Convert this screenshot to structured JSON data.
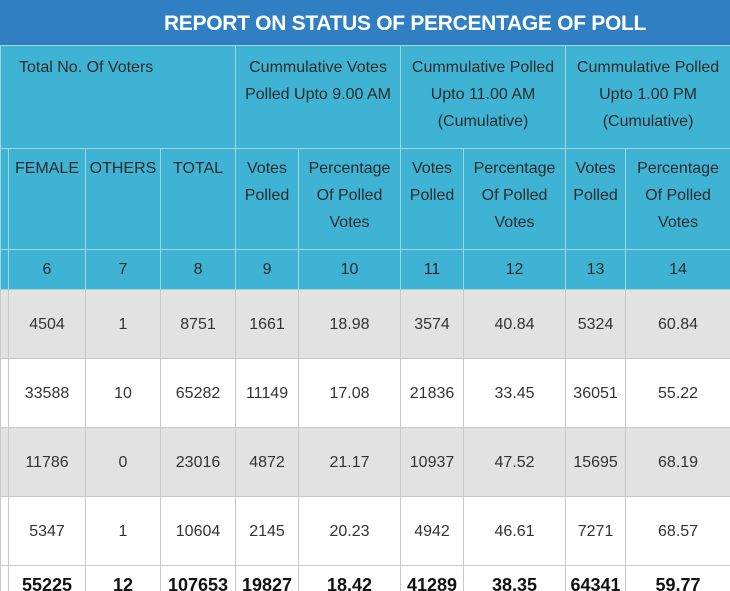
{
  "title": "REPORT ON STATUS OF PERCENTAGE OF POLL",
  "group_headers": [
    "Total No. Of Voters",
    "Cummulative Votes Polled Upto 9.00 AM",
    "Cummulative Polled Upto 11.00 AM (Cumulative)",
    "Cummulative Polled Upto 1.00 PM (Cumulative)"
  ],
  "sub_headers": [
    "FEMALE",
    "OTHERS",
    "TOTAL",
    "Votes Polled",
    "Percentage Of Polled Votes",
    "Votes Polled",
    "Percentage Of Polled Votes",
    "Votes Polled",
    "Percentage Of Polled Votes"
  ],
  "column_numbers": [
    "6",
    "7",
    "8",
    "9",
    "10",
    "11",
    "12",
    "13",
    "14"
  ],
  "rows": [
    [
      "4504",
      "1",
      "8751",
      "1661",
      "18.98",
      "3574",
      "40.84",
      "5324",
      "60.84"
    ],
    [
      "33588",
      "10",
      "65282",
      "11149",
      "17.08",
      "21836",
      "33.45",
      "36051",
      "55.22"
    ],
    [
      "11786",
      "0",
      "23016",
      "4872",
      "21.17",
      "10937",
      "47.52",
      "15695",
      "68.19"
    ],
    [
      "5347",
      "1",
      "10604",
      "2145",
      "20.23",
      "4942",
      "46.61",
      "7271",
      "68.57"
    ]
  ],
  "total": [
    "55225",
    "12",
    "107653",
    "19827",
    "18.42",
    "41289",
    "38.35",
    "64341",
    "59.77"
  ]
}
